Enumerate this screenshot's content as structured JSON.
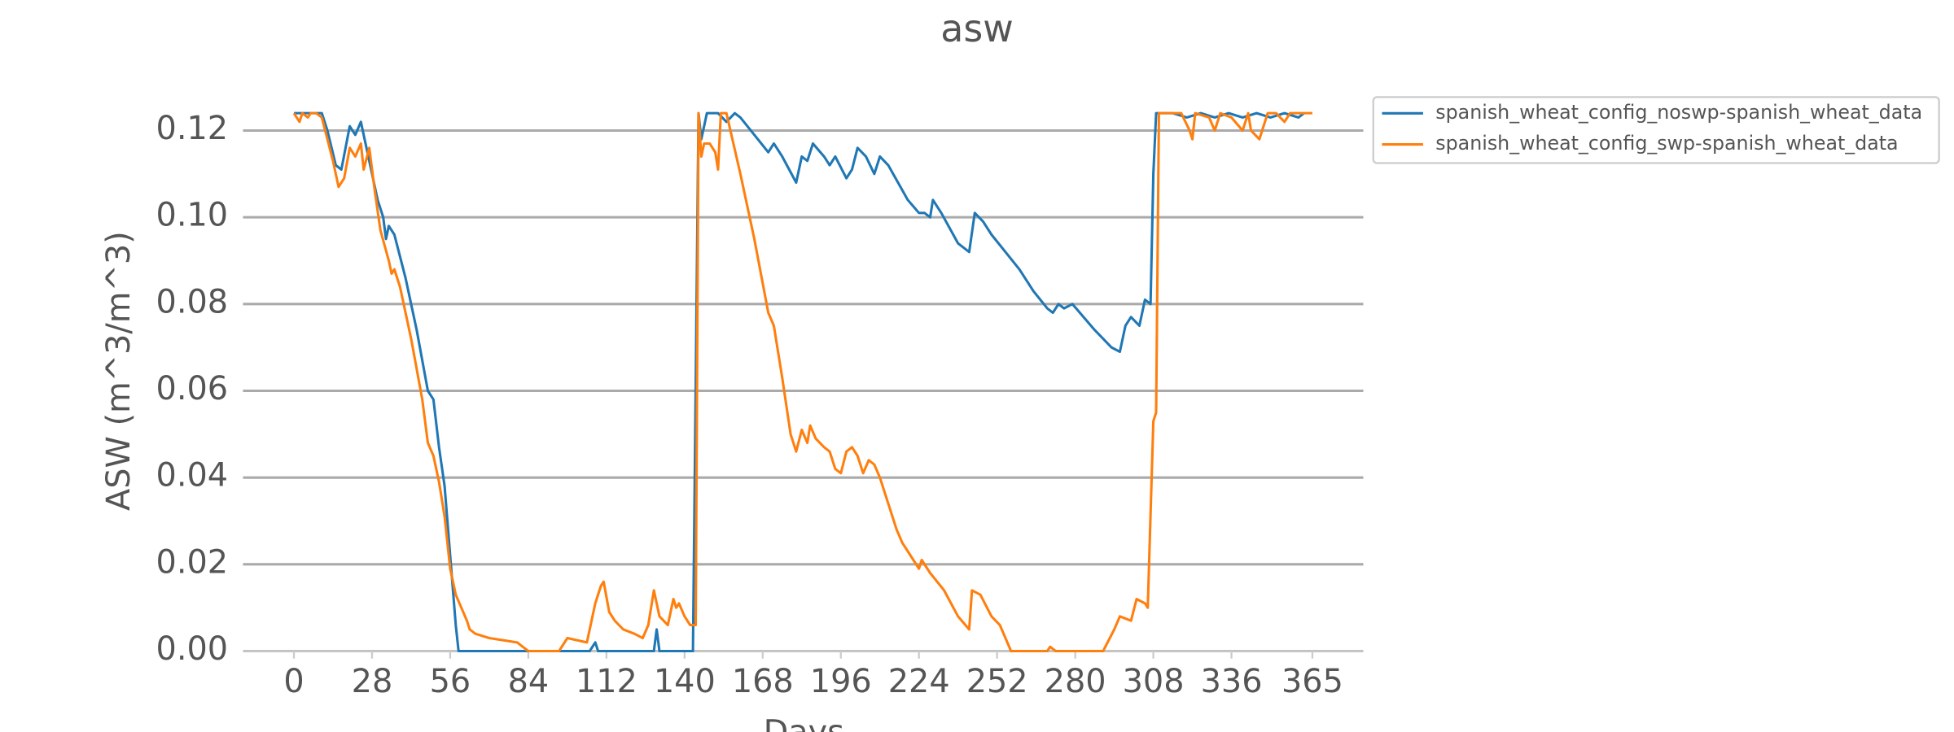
{
  "chart_data": {
    "type": "line",
    "title": "asw",
    "xlabel": "Days",
    "ylabel": "ASW (m^3/m^3)",
    "xlim": [
      -18.25,
      383.25
    ],
    "ylim": [
      0,
      0.13
    ],
    "xticks": [
      0,
      28,
      56,
      84,
      112,
      140,
      168,
      196,
      224,
      252,
      280,
      308,
      336,
      365
    ],
    "yticks": [
      {
        "value": 0,
        "label": "0.00"
      },
      {
        "value": 0.02,
        "label": "0.02"
      },
      {
        "value": 0.04,
        "label": "0.04"
      },
      {
        "value": 0.06,
        "label": "0.06"
      },
      {
        "value": 0.08,
        "label": "0.08"
      },
      {
        "value": 0.1,
        "label": "0.10"
      },
      {
        "value": 0.12,
        "label": "0.12"
      }
    ],
    "grid": true,
    "legend": "outside upper right",
    "series": [
      {
        "name": "spanish_wheat_config_noswp-spanish_wheat_data",
        "color": "#1f77b4",
        "x": [
          0,
          5,
          10,
          12,
          15,
          17,
          20,
          22,
          24,
          26,
          28,
          30,
          32,
          33,
          34,
          36,
          40,
          44,
          48,
          50,
          52,
          54,
          56,
          58,
          59,
          106,
          108,
          109,
          129,
          130,
          131,
          143,
          145,
          146,
          148,
          152,
          155,
          158,
          160,
          165,
          170,
          172,
          175,
          180,
          182,
          184,
          186,
          190,
          192,
          194,
          198,
          200,
          202,
          205,
          208,
          210,
          213,
          220,
          224,
          226,
          228,
          229,
          232,
          238,
          242,
          244,
          247,
          250,
          255,
          260,
          265,
          270,
          272,
          274,
          276,
          279,
          283,
          287,
          290,
          293,
          296,
          298,
          300,
          303,
          305,
          307,
          308,
          309,
          315,
          320,
          325,
          330,
          335,
          340,
          345,
          350,
          355,
          360,
          362
        ],
        "values": [
          0.124,
          0.124,
          0.124,
          0.12,
          0.112,
          0.111,
          0.121,
          0.119,
          0.122,
          0.116,
          0.11,
          0.104,
          0.1,
          0.095,
          0.098,
          0.096,
          0.086,
          0.074,
          0.06,
          0.058,
          0.047,
          0.038,
          0.022,
          0.006,
          0,
          0,
          0.002,
          0,
          0,
          0.005,
          0,
          0,
          0.124,
          0.118,
          0.124,
          0.124,
          0.122,
          0.124,
          0.123,
          0.119,
          0.115,
          0.117,
          0.114,
          0.108,
          0.114,
          0.113,
          0.117,
          0.114,
          0.112,
          0.114,
          0.109,
          0.111,
          0.116,
          0.114,
          0.11,
          0.114,
          0.112,
          0.104,
          0.101,
          0.101,
          0.1,
          0.104,
          0.101,
          0.094,
          0.092,
          0.101,
          0.099,
          0.096,
          0.092,
          0.088,
          0.083,
          0.079,
          0.078,
          0.08,
          0.079,
          0.08,
          0.077,
          0.074,
          0.072,
          0.07,
          0.069,
          0.075,
          0.077,
          0.075,
          0.081,
          0.08,
          0.11,
          0.124,
          0.124,
          0.123,
          0.124,
          0.123,
          0.124,
          0.123,
          0.124,
          0.123,
          0.124,
          0.123,
          0.124
        ]
      },
      {
        "name": "spanish_wheat_config_swp-spanish_wheat_data",
        "color": "#ff7f0e",
        "x": [
          0,
          2,
          3,
          5,
          6,
          8,
          10,
          12,
          14,
          16,
          18,
          20,
          22,
          24,
          25,
          27,
          29,
          31,
          34,
          35,
          36,
          38,
          42,
          46,
          48,
          50,
          52,
          54,
          56,
          58,
          60,
          62,
          63,
          65,
          70,
          80,
          82,
          84,
          95,
          98,
          105,
          108,
          110,
          111,
          113,
          115,
          118,
          122,
          125,
          127,
          129,
          131,
          134,
          136,
          137,
          138,
          140,
          142,
          144,
          145,
          146,
          147,
          149,
          151,
          152,
          153,
          155,
          160,
          165,
          170,
          172,
          175,
          178,
          180,
          182,
          184,
          185,
          187,
          190,
          192,
          194,
          196,
          198,
          200,
          202,
          204,
          206,
          208,
          210,
          213,
          216,
          218,
          222,
          224,
          225,
          228,
          233,
          238,
          242,
          243,
          246,
          250,
          253,
          257,
          270,
          271,
          273,
          276,
          290,
          294,
          296,
          300,
          302,
          305,
          306,
          308,
          309,
          310,
          318,
          321,
          322,
          323,
          328,
          330,
          332,
          336,
          340,
          342,
          343,
          346,
          349,
          352,
          355,
          357,
          360,
          365
        ],
        "values": [
          0.124,
          0.122,
          0.124,
          0.123,
          0.124,
          0.124,
          0.123,
          0.118,
          0.113,
          0.107,
          0.109,
          0.116,
          0.114,
          0.117,
          0.111,
          0.116,
          0.106,
          0.097,
          0.09,
          0.087,
          0.088,
          0.084,
          0.072,
          0.058,
          0.048,
          0.045,
          0.039,
          0.031,
          0.019,
          0.013,
          0.01,
          0.007,
          0.005,
          0.004,
          0.003,
          0.002,
          0.001,
          0,
          0,
          0.003,
          0.002,
          0.011,
          0.015,
          0.016,
          0.009,
          0.007,
          0.005,
          0.004,
          0.003,
          0.006,
          0.014,
          0.008,
          0.006,
          0.012,
          0.01,
          0.011,
          0.008,
          0.006,
          0.006,
          0.124,
          0.114,
          0.117,
          0.117,
          0.115,
          0.111,
          0.124,
          0.124,
          0.11,
          0.095,
          0.078,
          0.075,
          0.063,
          0.05,
          0.046,
          0.051,
          0.048,
          0.052,
          0.049,
          0.047,
          0.046,
          0.042,
          0.041,
          0.046,
          0.047,
          0.045,
          0.041,
          0.044,
          0.043,
          0.04,
          0.034,
          0.028,
          0.025,
          0.021,
          0.019,
          0.021,
          0.018,
          0.014,
          0.008,
          0.005,
          0.014,
          0.013,
          0.008,
          0.006,
          0,
          0,
          0.001,
          0,
          0,
          0,
          0.005,
          0.008,
          0.007,
          0.012,
          0.011,
          0.01,
          0.053,
          0.055,
          0.124,
          0.124,
          0.12,
          0.118,
          0.124,
          0.123,
          0.12,
          0.124,
          0.123,
          0.12,
          0.124,
          0.12,
          0.118,
          0.124,
          0.124,
          0.122,
          0.124,
          0.124,
          0.124
        ]
      }
    ]
  }
}
